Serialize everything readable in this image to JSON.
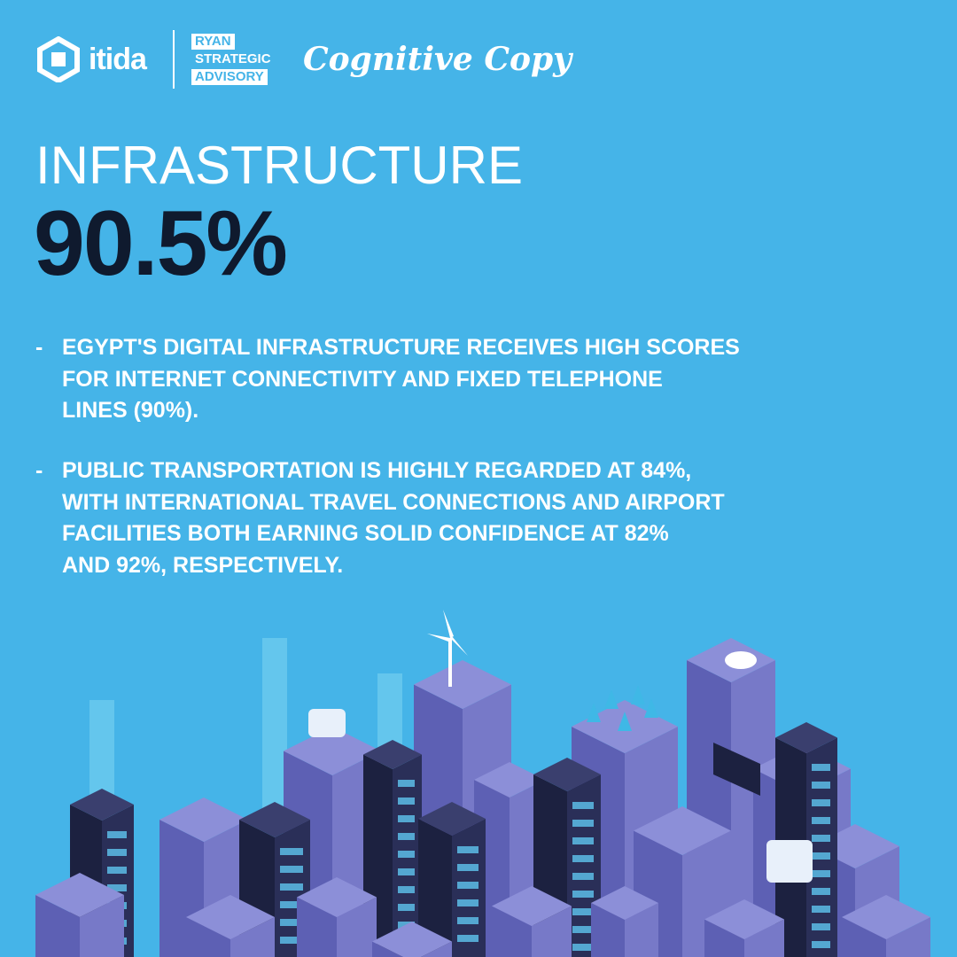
{
  "header": {
    "logo_itida": "itida",
    "logo_ryan": [
      "RYAN",
      "STRATEGIC",
      "ADVISORY"
    ],
    "logo_cognitive": "Cognitive Copy"
  },
  "title": "INFRASTRUCTURE",
  "score": "90.5%",
  "bullets": [
    [
      "EGYPT'S DIGITAL INFRASTRUCTURE RECEIVES HIGH SCORES",
      "FOR INTERNET CONNECTIVITY AND FIXED TELEPHONE",
      "LINES (90%)."
    ],
    [
      "PUBLIC TRANSPORTATION IS HIGHLY REGARDED AT 84%,",
      "WITH INTERNATIONAL TRAVEL CONNECTIONS AND AIRPORT",
      "FACILITIES BOTH EARNING SOLID CONFIDENCE AT 82%",
      "AND 92%, RESPECTIVELY."
    ]
  ]
}
